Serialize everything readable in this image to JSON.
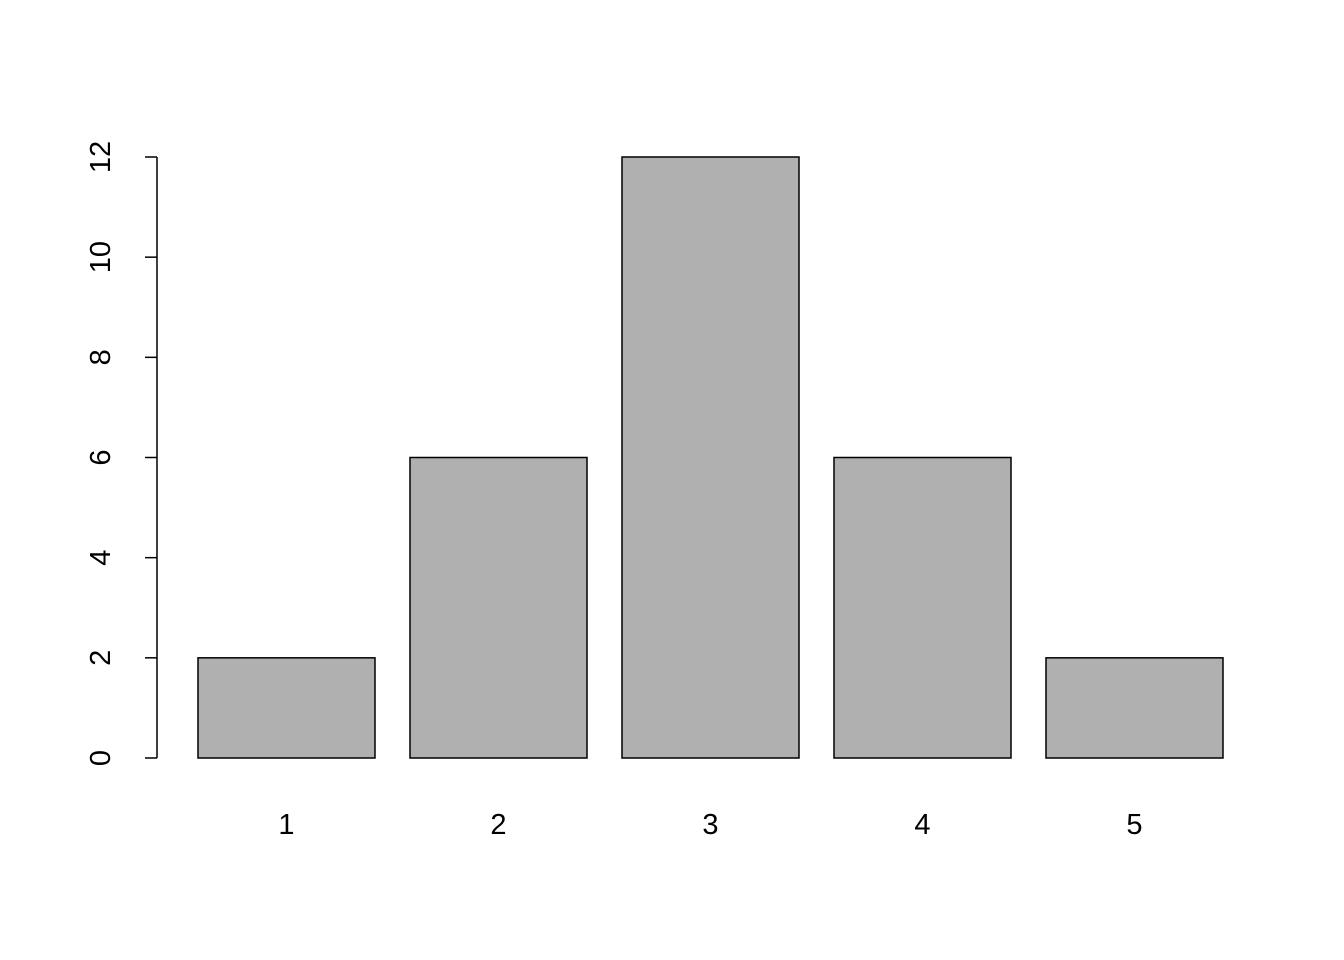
{
  "chart_data": {
    "type": "bar",
    "categories": [
      "1",
      "2",
      "3",
      "4",
      "5"
    ],
    "values": [
      2,
      6,
      12,
      6,
      2
    ],
    "title": "",
    "xlabel": "",
    "ylabel": "",
    "ylim": [
      0,
      12
    ],
    "yticks": [
      "0",
      "2",
      "4",
      "6",
      "8",
      "10",
      "12"
    ],
    "grid": false,
    "bar_color": "#b0b0b0",
    "border_color": "#000000"
  }
}
